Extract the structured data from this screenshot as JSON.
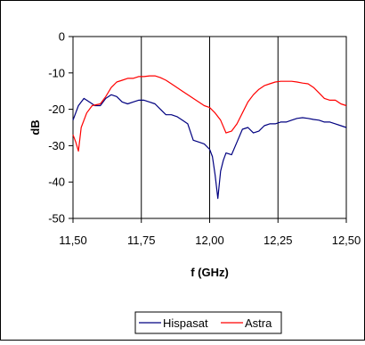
{
  "chart_data": {
    "type": "line",
    "title": "",
    "xlabel": "f (GHz)",
    "ylabel": "dB",
    "xlim": [
      11.5,
      12.5
    ],
    "ylim": [
      -50,
      0
    ],
    "x_ticks": [
      11.5,
      11.75,
      12.0,
      12.25,
      12.5
    ],
    "x_tick_labels": [
      "11,50",
      "11,75",
      "12,00",
      "12,25",
      "12,50"
    ],
    "y_ticks": [
      0,
      -10,
      -20,
      -30,
      -40,
      -50
    ],
    "y_tick_labels": [
      "0",
      "-10",
      "-20",
      "-30",
      "-40",
      "-50"
    ],
    "grid": {
      "x": true,
      "y": false
    },
    "legend": {
      "position": "bottom"
    },
    "series": [
      {
        "name": "Hispasat",
        "color": "#000080",
        "x": [
          11.5,
          11.52,
          11.54,
          11.56,
          11.58,
          11.6,
          11.62,
          11.64,
          11.66,
          11.68,
          11.7,
          11.72,
          11.74,
          11.76,
          11.78,
          11.8,
          11.82,
          11.84,
          11.86,
          11.88,
          11.9,
          11.92,
          11.94,
          11.96,
          11.98,
          12.0,
          12.01,
          12.02,
          12.03,
          12.04,
          12.05,
          12.06,
          12.08,
          12.1,
          12.12,
          12.14,
          12.16,
          12.18,
          12.2,
          12.22,
          12.24,
          12.26,
          12.28,
          12.3,
          12.32,
          12.34,
          12.36,
          12.38,
          12.4,
          12.42,
          12.44,
          12.46,
          12.48,
          12.5
        ],
        "values": [
          -23,
          -19,
          -17,
          -18,
          -19,
          -19,
          -17,
          -16,
          -16.5,
          -18,
          -18.5,
          -18,
          -17.5,
          -17.5,
          -18,
          -18.5,
          -20,
          -21.5,
          -21.5,
          -22,
          -23,
          -24,
          -28.5,
          -29,
          -29.5,
          -31,
          -33,
          -38,
          -44.5,
          -37,
          -34,
          -32,
          -32.5,
          -29,
          -25.5,
          -25,
          -26.5,
          -26,
          -24.5,
          -24,
          -24,
          -23.5,
          -23.5,
          -23,
          -22.5,
          -22.3,
          -22.5,
          -22.8,
          -23,
          -23.5,
          -23.5,
          -24,
          -24.5,
          -25
        ]
      },
      {
        "name": "Astra",
        "color": "#ff0000",
        "x": [
          11.5,
          11.51,
          11.52,
          11.53,
          11.55,
          11.57,
          11.6,
          11.62,
          11.64,
          11.66,
          11.68,
          11.7,
          11.72,
          11.74,
          11.76,
          11.78,
          11.8,
          11.82,
          11.84,
          11.86,
          11.88,
          11.9,
          11.92,
          11.94,
          11.96,
          11.98,
          12.0,
          12.02,
          12.04,
          12.06,
          12.08,
          12.1,
          12.12,
          12.14,
          12.16,
          12.18,
          12.2,
          12.22,
          12.24,
          12.26,
          12.28,
          12.3,
          12.32,
          12.34,
          12.36,
          12.38,
          12.4,
          12.42,
          12.44,
          12.46,
          12.48,
          12.5
        ],
        "values": [
          -27,
          -29,
          -31.5,
          -25,
          -21,
          -19,
          -18.5,
          -16.5,
          -14,
          -12.5,
          -12,
          -11.5,
          -11.5,
          -11,
          -11,
          -10.8,
          -10.8,
          -11.3,
          -12,
          -13,
          -14,
          -15,
          -16,
          -17,
          -18,
          -19,
          -19.5,
          -21,
          -23,
          -26.5,
          -26,
          -24,
          -21,
          -18,
          -16,
          -14.5,
          -13.5,
          -13,
          -12.5,
          -12.3,
          -12.3,
          -12.3,
          -12.5,
          -12.8,
          -13,
          -14,
          -15.5,
          -17,
          -17.5,
          -17.5,
          -18.5,
          -19
        ]
      }
    ]
  }
}
